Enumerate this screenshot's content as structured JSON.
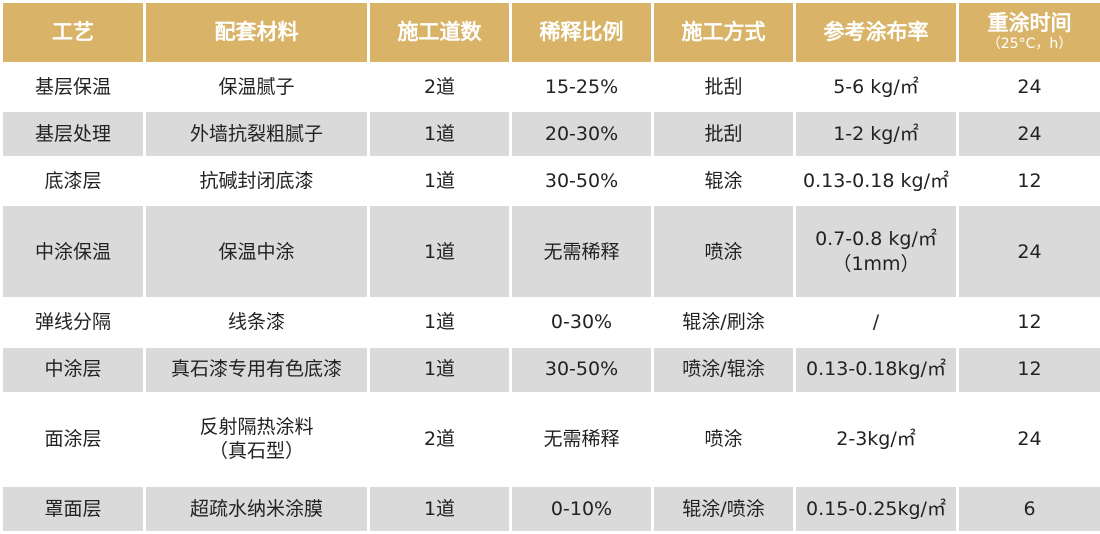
{
  "headers": [
    {
      "label": "工艺"
    },
    {
      "label": "配套材料"
    },
    {
      "label": "施工道数"
    },
    {
      "label": "稀释比例"
    },
    {
      "label": "施工方式"
    },
    {
      "label": "参考涂布率"
    },
    {
      "label": "重涂时间",
      "sub": "（25°C，h）"
    }
  ],
  "rows": [
    {
      "process": "基层保温",
      "material": "保温腻子",
      "coats": "2道",
      "dilution": "15-25%",
      "method": "批刮",
      "rate": "5-6 kg/㎡",
      "recoat": "24"
    },
    {
      "process": "基层处理",
      "material": "外墙抗裂粗腻子",
      "coats": "1道",
      "dilution": "20-30%",
      "method": "批刮",
      "rate": "1-2 kg/㎡",
      "recoat": "24"
    },
    {
      "process": "底漆层",
      "material": "抗碱封闭底漆",
      "coats": "1道",
      "dilution": "30-50%",
      "method": "辊涂",
      "rate": "0.13-0.18 kg/㎡",
      "recoat": "12"
    },
    {
      "process": "中涂保温",
      "material": "保温中涂",
      "coats": "1道",
      "dilution": "无需稀释",
      "method": "喷涂",
      "rate": "0.7-0.8 kg/㎡",
      "rate2": "（1mm）",
      "recoat": "24"
    },
    {
      "process": "弹线分隔",
      "material": "线条漆",
      "coats": "1道",
      "dilution": "0-30%",
      "method": "辊涂/刷涂",
      "rate": "/",
      "recoat": "12"
    },
    {
      "process": "中涂层",
      "material": "真石漆专用有色底漆",
      "coats": "1道",
      "dilution": "30-50%",
      "method": "喷涂/辊涂",
      "rate": "0.13-0.18kg/㎡",
      "recoat": "12"
    },
    {
      "process": "面涂层",
      "material": "反射隔热涂料",
      "material2": "（真石型）",
      "coats": "2道",
      "dilution": "无需稀释",
      "method": "喷涂",
      "rate": "2-3kg/㎡",
      "recoat": "24"
    },
    {
      "process": "罩面层",
      "material": "超疏水纳米涂膜",
      "coats": "1道",
      "dilution": "0-10%",
      "method": "辊涂/喷涂",
      "rate": "0.15-0.25kg/㎡",
      "recoat": "6"
    }
  ]
}
